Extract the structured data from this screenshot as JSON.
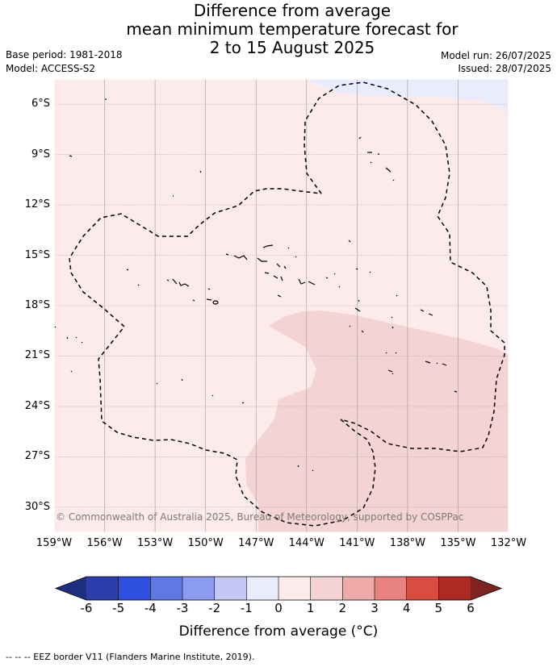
{
  "title": {
    "line1": "Difference from average",
    "line2": "mean minimum temperature forecast for",
    "line3": "2 to 15 August 2025"
  },
  "meta": {
    "base_period": "Base period: 1981-2018",
    "model": "Model: ACCESS-S2",
    "model_run": "Model run: 26/07/2025",
    "issued": "Issued: 28/07/2025"
  },
  "map": {
    "lon_range": [
      -159,
      -132
    ],
    "lat_range": [
      -31.5,
      -4.5
    ],
    "lat_ticks": [
      {
        "value": -6,
        "label": "6°S"
      },
      {
        "value": -9,
        "label": "9°S"
      },
      {
        "value": -12,
        "label": "12°S"
      },
      {
        "value": -15,
        "label": "15°S"
      },
      {
        "value": -18,
        "label": "18°S"
      },
      {
        "value": -21,
        "label": "21°S"
      },
      {
        "value": -24,
        "label": "24°S"
      },
      {
        "value": -27,
        "label": "27°S"
      },
      {
        "value": -30,
        "label": "30°S"
      }
    ],
    "lon_ticks": [
      {
        "value": -159,
        "label": "159°W"
      },
      {
        "value": -156,
        "label": "156°W"
      },
      {
        "value": -153,
        "label": "153°W"
      },
      {
        "value": -150,
        "label": "150°W"
      },
      {
        "value": -147,
        "label": "147°W"
      },
      {
        "value": -144,
        "label": "144°W"
      },
      {
        "value": -141,
        "label": "141°W"
      },
      {
        "value": -138,
        "label": "138°W"
      },
      {
        "value": -135,
        "label": "135°W"
      },
      {
        "value": -132,
        "label": "132°W"
      }
    ],
    "background_category": "0 to 1",
    "regions": [
      {
        "category": "1 to 2",
        "location": "south and south-east"
      },
      {
        "category": "-1 to 0",
        "location": "far north-east corner"
      }
    ],
    "copyright": "© Commonwealth of Australia 2025, Bureau of Meteorology, supported by COSPPac"
  },
  "colorbar": {
    "title": "Difference from average (°C)",
    "ticks": [
      "-6",
      "-5",
      "-4",
      "-3",
      "-2",
      "-1",
      "0",
      "1",
      "2",
      "3",
      "4",
      "5",
      "6"
    ],
    "colors": [
      "#2a3faa",
      "#2f4fdf",
      "#5f78e6",
      "#8b9bed",
      "#c3c9f4",
      "#eaecfc",
      "#fcebea",
      "#f4d4d3",
      "#edaaa8",
      "#e8827e",
      "#d94c42",
      "#ad2a22"
    ],
    "under_color": "#1f2f80",
    "over_color": "#7f2320"
  },
  "footnote": "-- -- -- EEZ border V11 (Flanders Marine Institute, 2019)."
}
